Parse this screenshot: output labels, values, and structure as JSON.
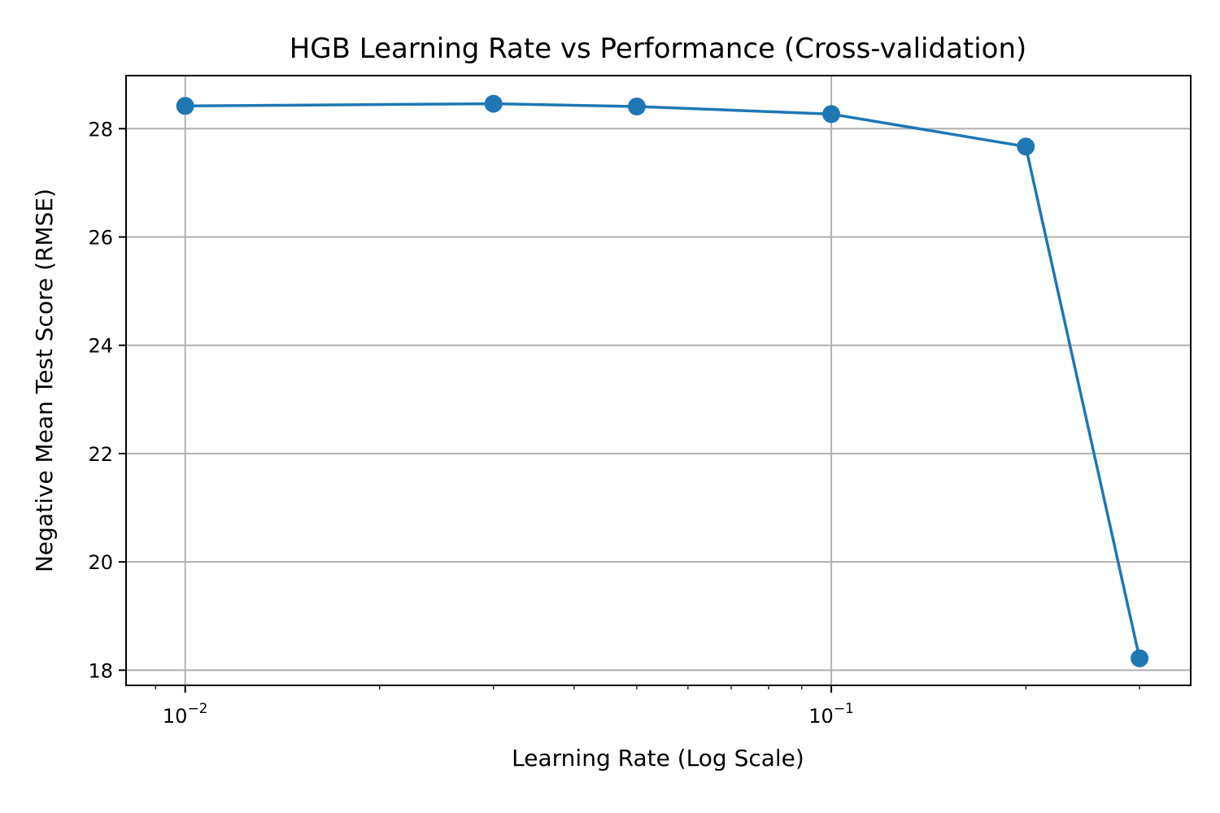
{
  "chart_data": {
    "type": "line",
    "title": "HGB Learning Rate vs Performance (Cross-validation)",
    "xlabel": "Learning Rate (Log Scale)",
    "ylabel": "Negative Mean Test Score (RMSE)",
    "xscale": "log",
    "x": [
      0.01,
      0.03,
      0.05,
      0.1,
      0.2,
      0.3
    ],
    "series": [
      {
        "values": [
          28.42,
          28.46,
          28.41,
          28.27,
          27.67,
          18.22
        ],
        "color": "#1f77b4",
        "marker": "circle"
      }
    ],
    "xlim": [
      0.0081,
      0.36
    ],
    "ylim": [
      17.72,
      28.98
    ],
    "x_major_ticks": [
      {
        "value": 0.01,
        "base": "10",
        "exponent": "−2"
      },
      {
        "value": 0.1,
        "base": "10",
        "exponent": "−1"
      }
    ],
    "x_minor_ticks": [
      0.009,
      0.02,
      0.03,
      0.04,
      0.05,
      0.06,
      0.07,
      0.08,
      0.09,
      0.2,
      0.3
    ],
    "y_ticks": [
      {
        "value": 18,
        "label": "18"
      },
      {
        "value": 20,
        "label": "20"
      },
      {
        "value": 22,
        "label": "22"
      },
      {
        "value": 24,
        "label": "24"
      },
      {
        "value": 26,
        "label": "26"
      },
      {
        "value": 28,
        "label": "28"
      }
    ],
    "grid": true,
    "legend": "none"
  }
}
